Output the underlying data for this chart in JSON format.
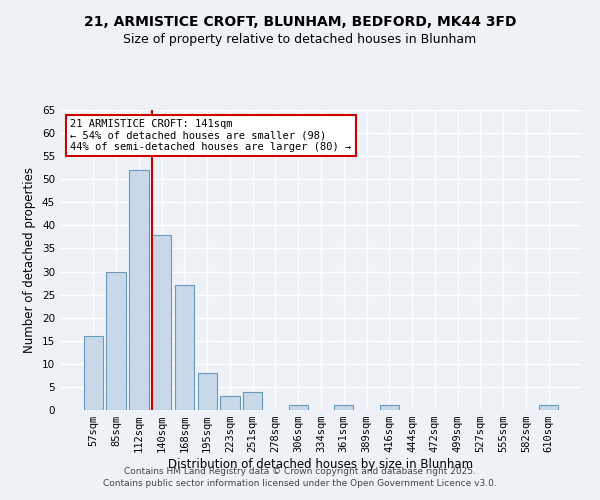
{
  "title": "21, ARMISTICE CROFT, BLUNHAM, BEDFORD, MK44 3FD",
  "subtitle": "Size of property relative to detached houses in Blunham",
  "xlabel": "Distribution of detached houses by size in Blunham",
  "ylabel": "Number of detached properties",
  "bar_labels": [
    "57sqm",
    "85sqm",
    "112sqm",
    "140sqm",
    "168sqm",
    "195sqm",
    "223sqm",
    "251sqm",
    "278sqm",
    "306sqm",
    "334sqm",
    "361sqm",
    "389sqm",
    "416sqm",
    "444sqm",
    "472sqm",
    "499sqm",
    "527sqm",
    "555sqm",
    "582sqm",
    "610sqm"
  ],
  "bar_values": [
    16,
    30,
    52,
    38,
    27,
    8,
    3,
    4,
    0,
    1,
    0,
    1,
    0,
    1,
    0,
    0,
    0,
    0,
    0,
    0,
    1
  ],
  "bar_color": "#c8d8e8",
  "bar_edge_color": "#6699bb",
  "ylim": [
    0,
    65
  ],
  "yticks": [
    0,
    5,
    10,
    15,
    20,
    25,
    30,
    35,
    40,
    45,
    50,
    55,
    60,
    65
  ],
  "vline_index": 3,
  "vline_color": "#cc0000",
  "annotation_title": "21 ARMISTICE CROFT: 141sqm",
  "annotation_line1": "← 54% of detached houses are smaller (98)",
  "annotation_line2": "44% of semi-detached houses are larger (80) →",
  "annotation_box_color": "#ffffff",
  "annotation_box_edge": "#cc0000",
  "footer1": "Contains HM Land Registry data © Crown copyright and database right 2025.",
  "footer2": "Contains public sector information licensed under the Open Government Licence v3.0.",
  "background_color": "#eef2f7",
  "grid_color": "#ffffff",
  "title_fontsize": 10,
  "subtitle_fontsize": 9,
  "axis_label_fontsize": 8.5,
  "tick_fontsize": 7.5,
  "annotation_fontsize": 7.5,
  "footer_fontsize": 6.5
}
